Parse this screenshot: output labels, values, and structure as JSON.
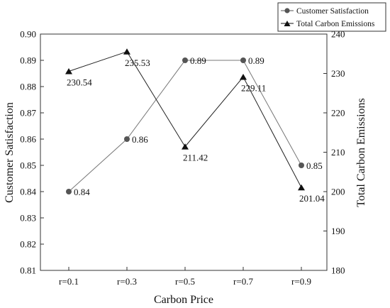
{
  "chart_data": {
    "type": "line",
    "title": "",
    "xlabel": "Carbon Price",
    "categories": [
      "r=0.1",
      "r=0.3",
      "r=0.5",
      "r=0.7",
      "r=0.9"
    ],
    "y_left": {
      "label": "Customer Satisfaction",
      "ylim": [
        0.81,
        0.9
      ],
      "ticks": [
        "0.81",
        "0.82",
        "0.83",
        "0.84",
        "0.85",
        "0.86",
        "0.87",
        "0.88",
        "0.89",
        "0.90"
      ]
    },
    "y_right": {
      "label": "Total Carbon Emissions",
      "ylim": [
        180,
        240
      ],
      "ticks": [
        "180",
        "190",
        "200",
        "210",
        "220",
        "230",
        "240"
      ]
    },
    "series": [
      {
        "name": "Customer Satisfaction",
        "axis": "left",
        "marker": "circle",
        "color": "#555555",
        "values": [
          0.84,
          0.86,
          0.89,
          0.89,
          0.85
        ],
        "labels": [
          "0.84",
          "0.86",
          "0.89",
          "0.89",
          "0.85"
        ]
      },
      {
        "name": "Total Carbon Emissions",
        "axis": "right",
        "marker": "triangle",
        "color": "#111111",
        "values": [
          230.54,
          235.53,
          211.42,
          229.11,
          201.04
        ],
        "labels": [
          "230.54",
          "235.53",
          "211.42",
          "229.11",
          "201.04"
        ]
      }
    ],
    "grid": false,
    "legend_position": "top-right"
  }
}
